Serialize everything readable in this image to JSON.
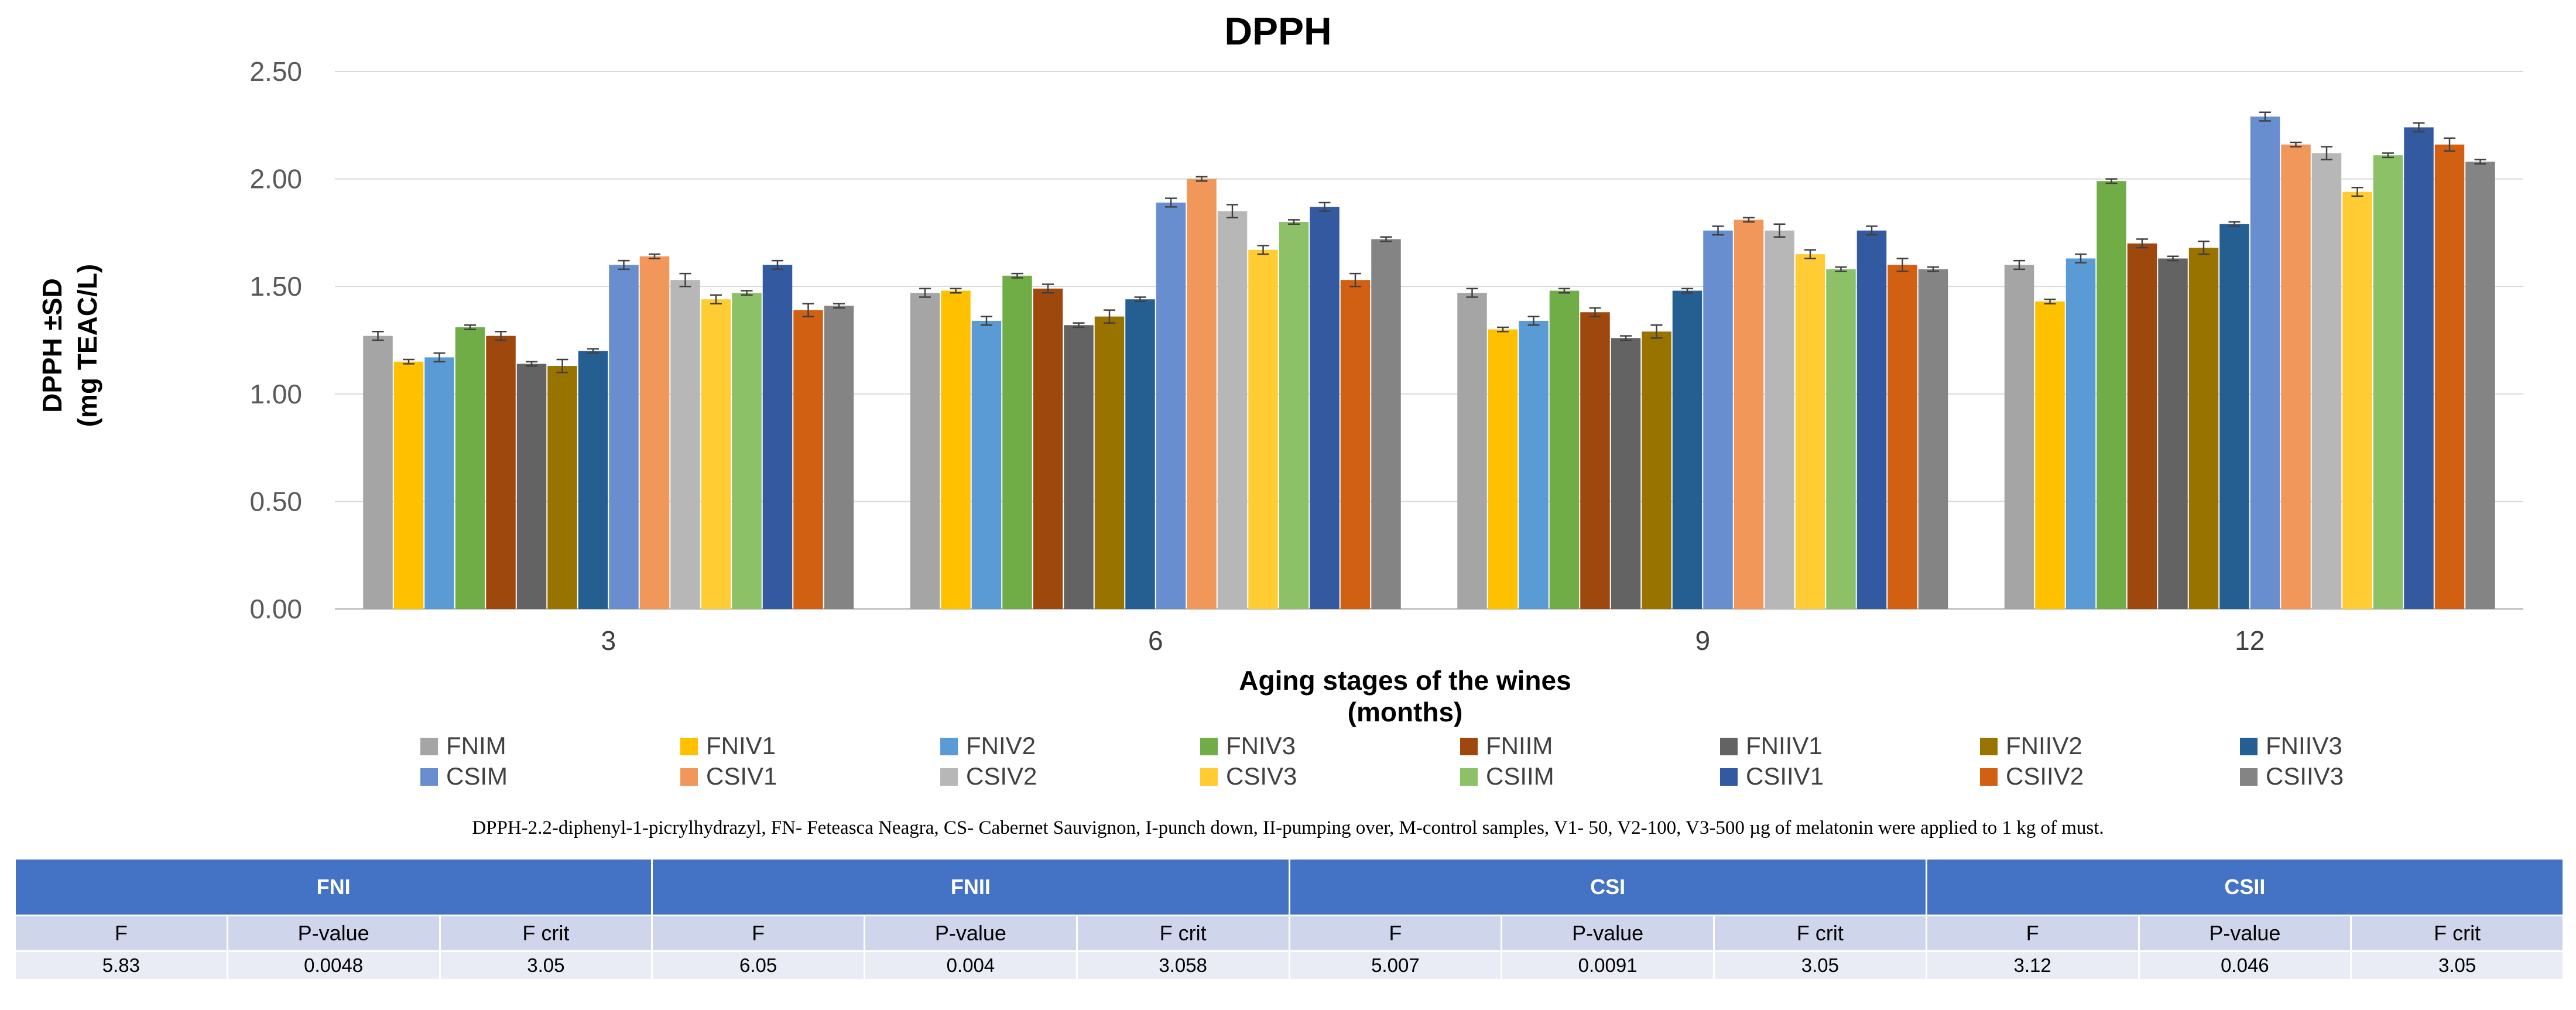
{
  "chart_data": {
    "type": "bar",
    "title": "DPPH",
    "xlabel": "Aging stages of the wines\n(months)",
    "ylabel": "DPPH ±SD\n(mg TEAC/L)",
    "ylim": [
      0,
      2.5
    ],
    "yticks": [
      "0.00",
      "0.50",
      "1.00",
      "1.50",
      "2.00",
      "2.50"
    ],
    "grid": true,
    "legend_position": "bottom",
    "categories": [
      "3",
      "6",
      "9",
      "12"
    ],
    "series": [
      {
        "name": "FNIM",
        "color": "#a5a5a5",
        "values": [
          1.27,
          1.47,
          1.47,
          1.6
        ],
        "errors": [
          0.02,
          0.02,
          0.02,
          0.02
        ]
      },
      {
        "name": "FNIV1",
        "color": "#ffc000",
        "values": [
          1.15,
          1.48,
          1.3,
          1.43
        ],
        "errors": [
          0.01,
          0.01,
          0.01,
          0.01
        ]
      },
      {
        "name": "FNIV2",
        "color": "#5b9bd5",
        "values": [
          1.17,
          1.34,
          1.34,
          1.63
        ],
        "errors": [
          0.02,
          0.02,
          0.02,
          0.02
        ]
      },
      {
        "name": "FNIV3",
        "color": "#70ad47",
        "values": [
          1.31,
          1.55,
          1.48,
          1.99
        ],
        "errors": [
          0.01,
          0.01,
          0.01,
          0.01
        ]
      },
      {
        "name": "FNIIM",
        "color": "#9e480e",
        "values": [
          1.27,
          1.49,
          1.38,
          1.7
        ],
        "errors": [
          0.02,
          0.02,
          0.02,
          0.02
        ]
      },
      {
        "name": "FNIIV1",
        "color": "#636363",
        "values": [
          1.14,
          1.32,
          1.26,
          1.63
        ],
        "errors": [
          0.01,
          0.01,
          0.01,
          0.01
        ]
      },
      {
        "name": "FNIIV2",
        "color": "#997300",
        "values": [
          1.13,
          1.36,
          1.29,
          1.68
        ],
        "errors": [
          0.03,
          0.03,
          0.03,
          0.03
        ]
      },
      {
        "name": "FNIIV3",
        "color": "#255e91",
        "values": [
          1.2,
          1.44,
          1.48,
          1.79
        ],
        "errors": [
          0.01,
          0.01,
          0.01,
          0.01
        ]
      },
      {
        "name": "CSIM",
        "color": "#698ed0",
        "values": [
          1.6,
          1.89,
          1.76,
          2.29
        ],
        "errors": [
          0.02,
          0.02,
          0.02,
          0.02
        ]
      },
      {
        "name": "CSIV1",
        "color": "#f1975a",
        "values": [
          1.64,
          2.0,
          1.81,
          2.16
        ],
        "errors": [
          0.01,
          0.01,
          0.01,
          0.01
        ]
      },
      {
        "name": "CSIV2",
        "color": "#b7b7b7",
        "values": [
          1.53,
          1.85,
          1.76,
          2.12
        ],
        "errors": [
          0.03,
          0.03,
          0.03,
          0.03
        ]
      },
      {
        "name": "CSIV3",
        "color": "#ffcd33",
        "values": [
          1.44,
          1.67,
          1.65,
          1.94
        ],
        "errors": [
          0.02,
          0.02,
          0.02,
          0.02
        ]
      },
      {
        "name": "CSIIM",
        "color": "#8cc168",
        "values": [
          1.47,
          1.8,
          1.58,
          2.11
        ],
        "errors": [
          0.01,
          0.01,
          0.01,
          0.01
        ]
      },
      {
        "name": "CSIIV1",
        "color": "#335aa1",
        "values": [
          1.6,
          1.87,
          1.76,
          2.24
        ],
        "errors": [
          0.02,
          0.02,
          0.02,
          0.02
        ]
      },
      {
        "name": "CSIIV2",
        "color": "#d26012",
        "values": [
          1.39,
          1.53,
          1.6,
          2.16
        ],
        "errors": [
          0.03,
          0.03,
          0.03,
          0.03
        ]
      },
      {
        "name": "CSIIV3",
        "color": "#848484",
        "values": [
          1.41,
          1.72,
          1.58,
          2.08
        ],
        "errors": [
          0.01,
          0.01,
          0.01,
          0.01
        ]
      }
    ]
  },
  "caption": "DPPH-2.2-diphenyl-1-picrylhydrazyl, FN- Feteasca Neagra, CS- Cabernet Sauvignon, I-punch down, II-pumping over, M-control samples, V1- 50, V2-100, V3-500 µg of melatonin were applied to 1 kg of must.",
  "stats_table": {
    "groups": [
      "FNI",
      "FNII",
      "CSI",
      "CSII"
    ],
    "headers": [
      "F",
      "P-value",
      "F crit"
    ],
    "values": [
      [
        "5.83",
        "0.0048",
        "3.05"
      ],
      [
        "6.05",
        "0.004",
        "3.058"
      ],
      [
        "5.007",
        "0.0091",
        "3.05"
      ],
      [
        "3.12",
        "0.046",
        "3.05"
      ]
    ]
  }
}
